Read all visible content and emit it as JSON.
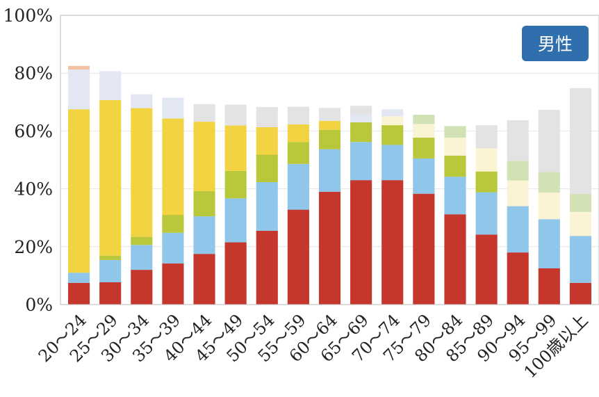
{
  "badge": {
    "label": "男性"
  },
  "colors": {
    "badge_bg": "#2f6fae",
    "plot_border": "#bbbbbb",
    "gridline": "#e4e4e4"
  },
  "chart_data": {
    "type": "bar",
    "stacked": true,
    "title": "",
    "xlabel": "",
    "ylabel": "",
    "ylim": [
      0,
      100
    ],
    "y_unit": "%",
    "grid": true,
    "yticks": [
      "0%",
      "20%",
      "40%",
      "60%",
      "80%",
      "100%"
    ],
    "categories": [
      "20～24",
      "25～29",
      "30～34",
      "35～39",
      "40～44",
      "45～49",
      "50～54",
      "55～59",
      "60～64",
      "65～69",
      "70～74",
      "75～79",
      "80～84",
      "85～89",
      "90～94",
      "95～99",
      "100歳以上"
    ],
    "series": [
      {
        "color": "#c5362c",
        "values": [
          7.5,
          7.7,
          12,
          14.2,
          17.5,
          21.5,
          25.5,
          32.8,
          39,
          43,
          43,
          38.3,
          31.2,
          24.2,
          18,
          12.5,
          7.5
        ]
      },
      {
        "color": "#8fc6ea",
        "values": [
          3.5,
          7.7,
          8.6,
          10.6,
          13,
          15.2,
          16.8,
          15.8,
          14.7,
          13.2,
          12.2,
          12.2,
          13,
          14.6,
          16,
          17,
          16.2
        ]
      },
      {
        "color": "#b8c83a",
        "values": [
          0,
          1.5,
          2.8,
          6.2,
          8.7,
          9.5,
          9.5,
          7.6,
          6.7,
          6.8,
          6.8,
          7.2,
          7.3,
          7.2,
          0,
          0,
          0
        ]
      },
      {
        "color": "#f2d443",
        "values": [
          56.5,
          53.8,
          44.5,
          33.3,
          24,
          15.7,
          9.5,
          6.1,
          3.1,
          0,
          0,
          0,
          0,
          0,
          0,
          0,
          0
        ]
      },
      {
        "color": "#faf3d4",
        "values": [
          0,
          0,
          0,
          0,
          0,
          0,
          0,
          0,
          0,
          0,
          3.1,
          4.7,
          6.2,
          8,
          8.9,
          9.2,
          8.3
        ]
      },
      {
        "color": "#d3e2b4",
        "values": [
          0,
          0,
          0,
          0,
          0,
          0,
          0,
          0,
          0,
          0,
          0,
          3.2,
          4,
          0,
          6.8,
          7.1,
          6.3
        ]
      },
      {
        "color": "#e3e7f4",
        "values": [
          13.7,
          10,
          4.8,
          7.2,
          0,
          0,
          0,
          0,
          0,
          2.6,
          2.4,
          0,
          0,
          0,
          0,
          0,
          0
        ]
      },
      {
        "color": "#e3e3e3",
        "values": [
          0,
          0,
          0,
          0,
          6.1,
          7.2,
          7,
          6.1,
          4.5,
          3.1,
          0,
          0,
          0,
          8,
          14,
          21.5,
          36.5
        ]
      },
      {
        "color": "#f2c2a2",
        "values": [
          1.3,
          0,
          0,
          0,
          0,
          0,
          0,
          0,
          0,
          0,
          0,
          0,
          0,
          0,
          0,
          0,
          0
        ]
      }
    ]
  }
}
